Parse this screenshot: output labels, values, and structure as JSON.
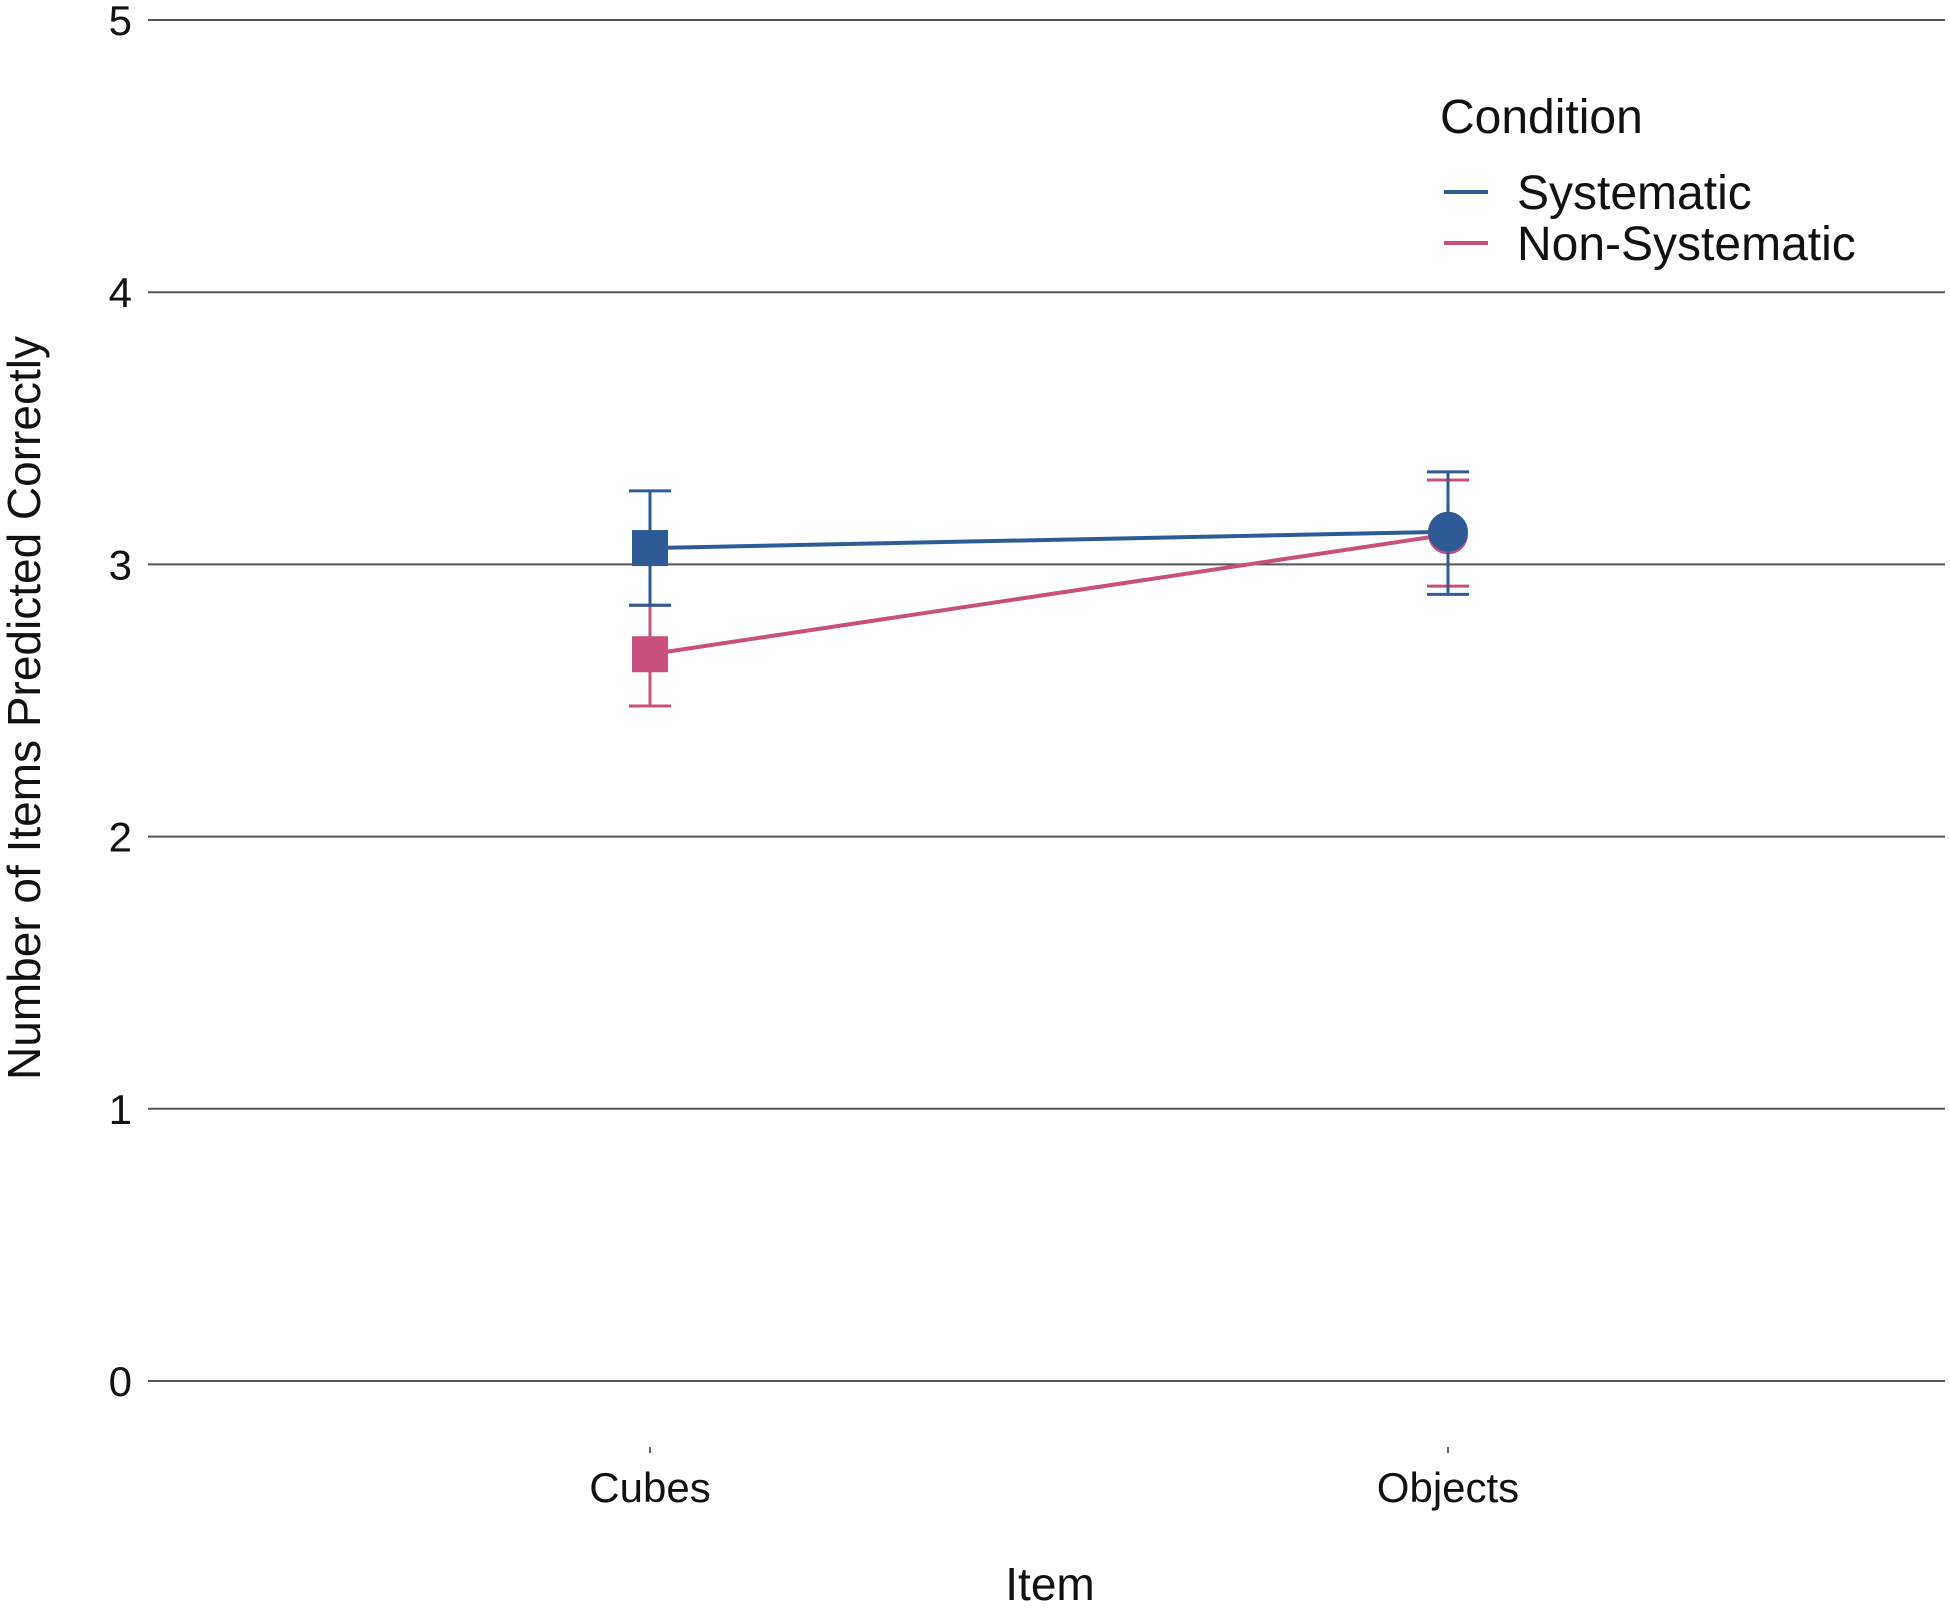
{
  "chart_data": {
    "type": "line",
    "title": "",
    "xlabel": "Item",
    "ylabel": "Number of Items Predicted Correctly",
    "categories": [
      "Cubes",
      "Objects"
    ],
    "ylim": [
      0,
      5
    ],
    "yticks": [
      0,
      1,
      2,
      3,
      4,
      5
    ],
    "grid": "horizontal",
    "legend": {
      "title": "Condition",
      "placement": "top-right"
    },
    "series": [
      {
        "name": "Systematic",
        "color": "#2e5b96",
        "markers": [
          "square",
          "circle"
        ],
        "values": [
          3.06,
          3.12
        ],
        "error_low": [
          2.85,
          2.89
        ],
        "error_high": [
          3.27,
          3.34
        ]
      },
      {
        "name": "Non-Systematic",
        "color": "#c94f7c",
        "markers": [
          "square",
          "circle"
        ],
        "values": [
          2.67,
          3.11
        ],
        "error_low": [
          2.48,
          2.92
        ],
        "error_high": [
          2.85,
          3.31
        ]
      }
    ]
  }
}
